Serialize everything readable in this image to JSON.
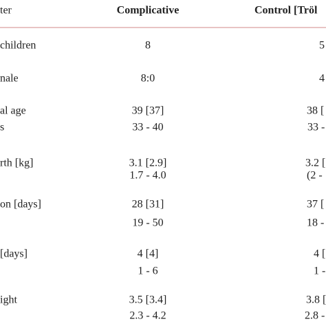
{
  "table": {
    "header": [
      "ter",
      "Complicative",
      "Control [Tröl"
    ],
    "rows": [
      [
        [
          "children"
        ],
        [
          "8"
        ],
        [
          "5"
        ]
      ],
      [
        [
          "nale"
        ],
        [
          "8:0"
        ],
        [
          "4"
        ]
      ],
      [
        [
          "al age",
          "s"
        ],
        [
          "39 [37]",
          "33 - 40"
        ],
        [
          "38 [",
          "33 -"
        ]
      ],
      [
        [
          "rth [kg]"
        ],
        [
          "3.1 [2.9]",
          "1.7 - 4.0"
        ],
        [
          "3.2 [",
          "(2 -"
        ]
      ],
      [
        [
          "on [days]"
        ],
        [
          "28 [31]",
          "19 - 50"
        ],
        [
          "37 [",
          "18 -"
        ]
      ],
      [
        [
          "[days]"
        ],
        [
          "4 [4]",
          "1 - 6"
        ],
        [
          "4 [",
          "1 -"
        ]
      ],
      [
        [
          "ight"
        ],
        [
          "3.5 [3.4]",
          "2.3 - 4.2"
        ],
        [
          "3.8 [",
          "2.8 -"
        ]
      ]
    ]
  }
}
